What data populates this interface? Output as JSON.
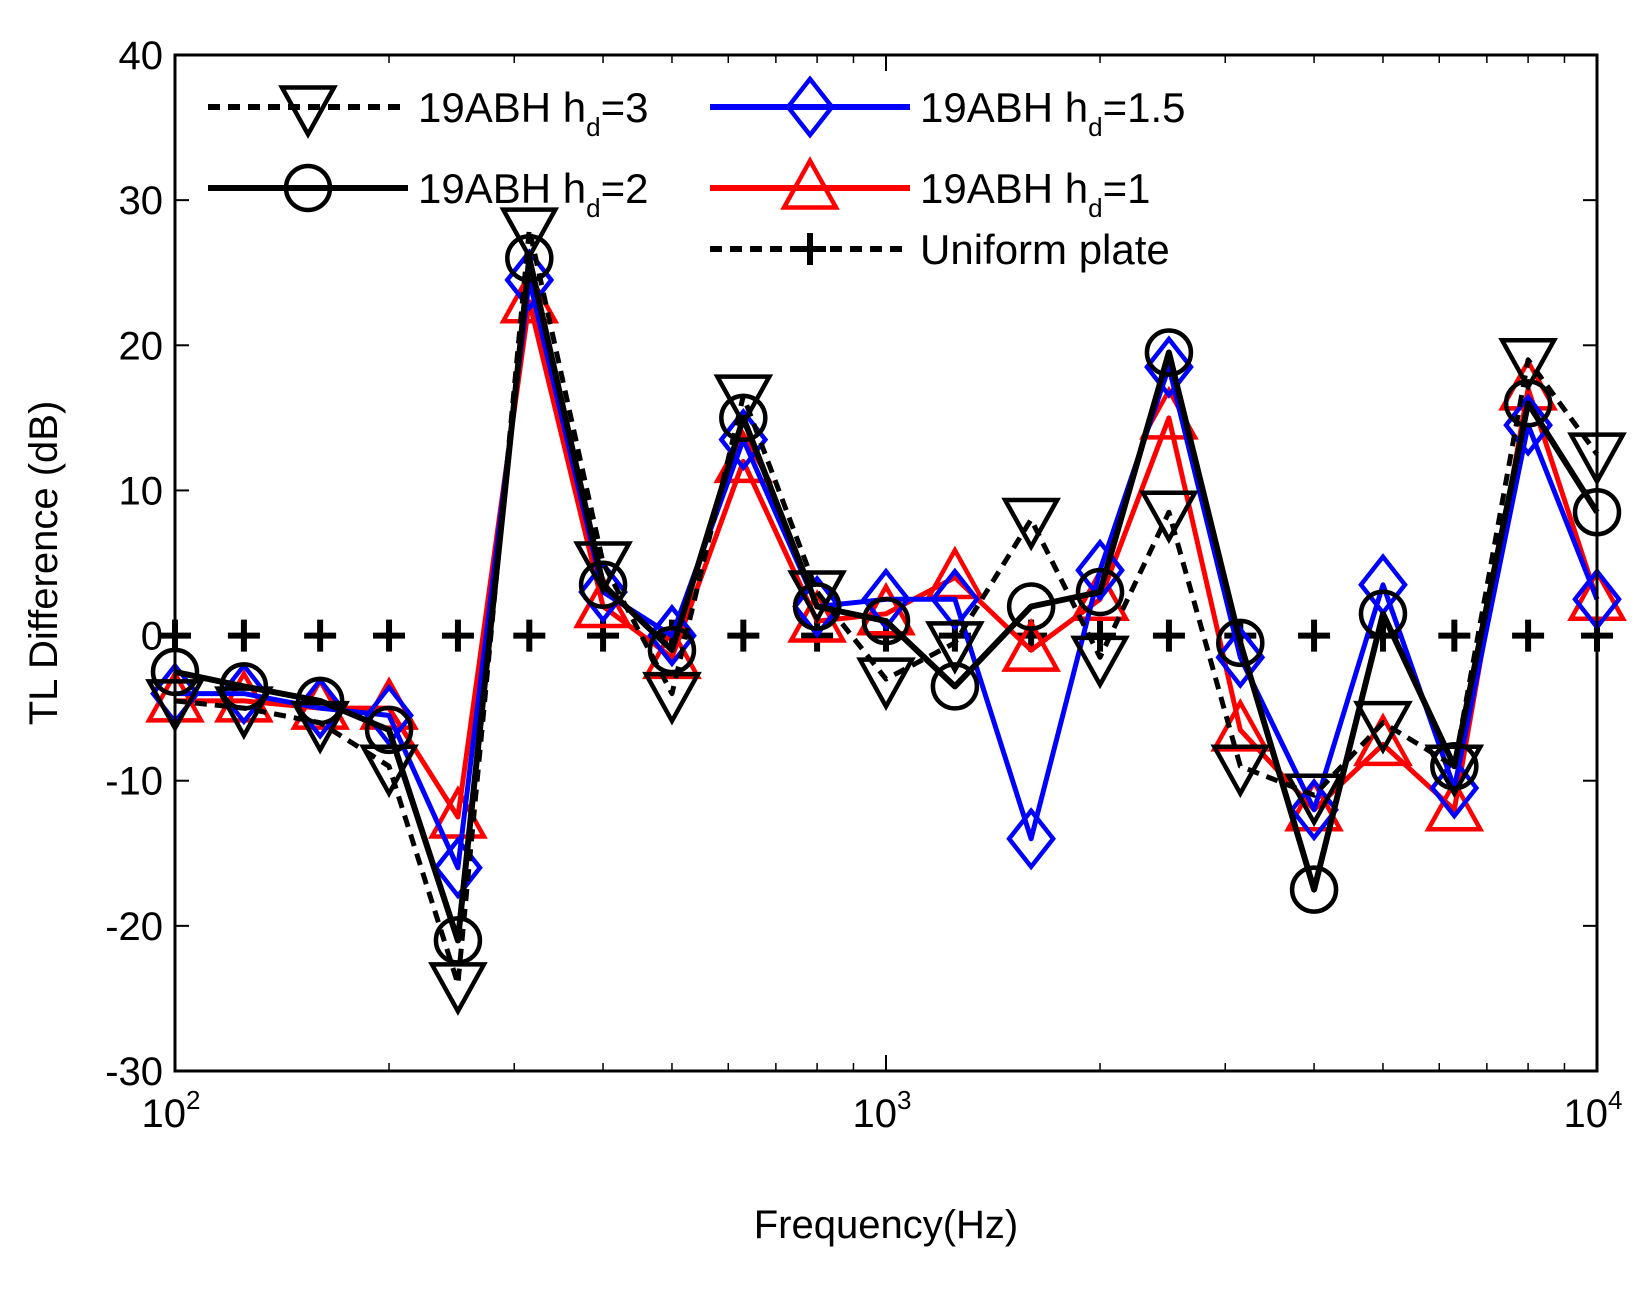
{
  "chart_data": {
    "type": "line",
    "xlabel": "Frequency(Hz)",
    "ylabel": "TL Difference (dB)",
    "x_scale": "log",
    "xlim": [
      100,
      10000
    ],
    "ylim": [
      -30,
      40
    ],
    "y_ticks": [
      "-30",
      "-20",
      "-10",
      "0",
      "10",
      "20",
      "30",
      "40"
    ],
    "x_ticks": [
      {
        "base": "10",
        "exp": "2",
        "value": 100
      },
      {
        "base": "10",
        "exp": "3",
        "value": 1000
      },
      {
        "base": "10",
        "exp": "4",
        "value": 10000
      }
    ],
    "x": [
      100,
      125,
      160,
      200,
      250,
      315,
      400,
      500,
      630,
      800,
      1000,
      1250,
      1600,
      2000,
      2500,
      3150,
      4000,
      5000,
      6300,
      8000,
      10000
    ],
    "legend_placement": "top",
    "grid": false,
    "series": [
      {
        "legend_main": "19ABH h",
        "legend_sub": "d",
        "legend_tail": "=3",
        "color": "#000000",
        "dashed": true,
        "marker": "triangle-down",
        "values": [
          -4.5,
          -5,
          -6,
          -9,
          -24,
          28,
          5,
          -4,
          16.5,
          3,
          -3,
          -0.5,
          8,
          -1.5,
          8.5,
          -9,
          -11,
          -6,
          -9,
          19,
          12.5
        ]
      },
      {
        "legend_main": "19ABH h",
        "legend_sub": "d",
        "legend_tail": "=2",
        "color": "#000000",
        "dashed": false,
        "marker": "circle",
        "values": [
          -2.5,
          -3.5,
          -4.5,
          -6.5,
          -21,
          26,
          3.5,
          -1,
          15,
          2,
          1,
          -3.5,
          2,
          3,
          19.5,
          -0.5,
          -17.5,
          1.5,
          -9,
          16,
          8.5
        ]
      },
      {
        "legend_main": "19ABH h",
        "legend_sub": "d",
        "legend_tail": "=1.5",
        "color": "#0000ff",
        "dashed": false,
        "marker": "diamond",
        "values": [
          -4,
          -4,
          -5,
          -5.5,
          -16,
          24.5,
          3,
          0,
          13.5,
          2,
          2.5,
          2.5,
          -14,
          4.5,
          18.5,
          -1.5,
          -12,
          3.5,
          -10.5,
          14.5,
          2.5
        ]
      },
      {
        "legend_main": "19ABH h",
        "legend_sub": "d",
        "legend_tail": "=1",
        "color": "#ff0000",
        "dashed": false,
        "marker": "triangle-up",
        "values": [
          -4.5,
          -4.5,
          -5,
          -5,
          -12.5,
          23,
          2,
          -1.5,
          12,
          1,
          1.5,
          4,
          -1,
          2.5,
          15,
          -6.5,
          -12,
          -7.5,
          -12,
          17,
          2.5
        ]
      },
      {
        "legend_main": "Uniform plate",
        "legend_sub": "",
        "legend_tail": "",
        "color": "#000000",
        "dashed": true,
        "marker": "plus",
        "values": [
          0,
          0,
          0,
          0,
          0,
          0,
          0,
          0,
          0,
          0,
          0,
          0,
          0,
          0,
          0,
          0,
          0,
          0,
          0,
          0,
          0
        ]
      }
    ]
  }
}
